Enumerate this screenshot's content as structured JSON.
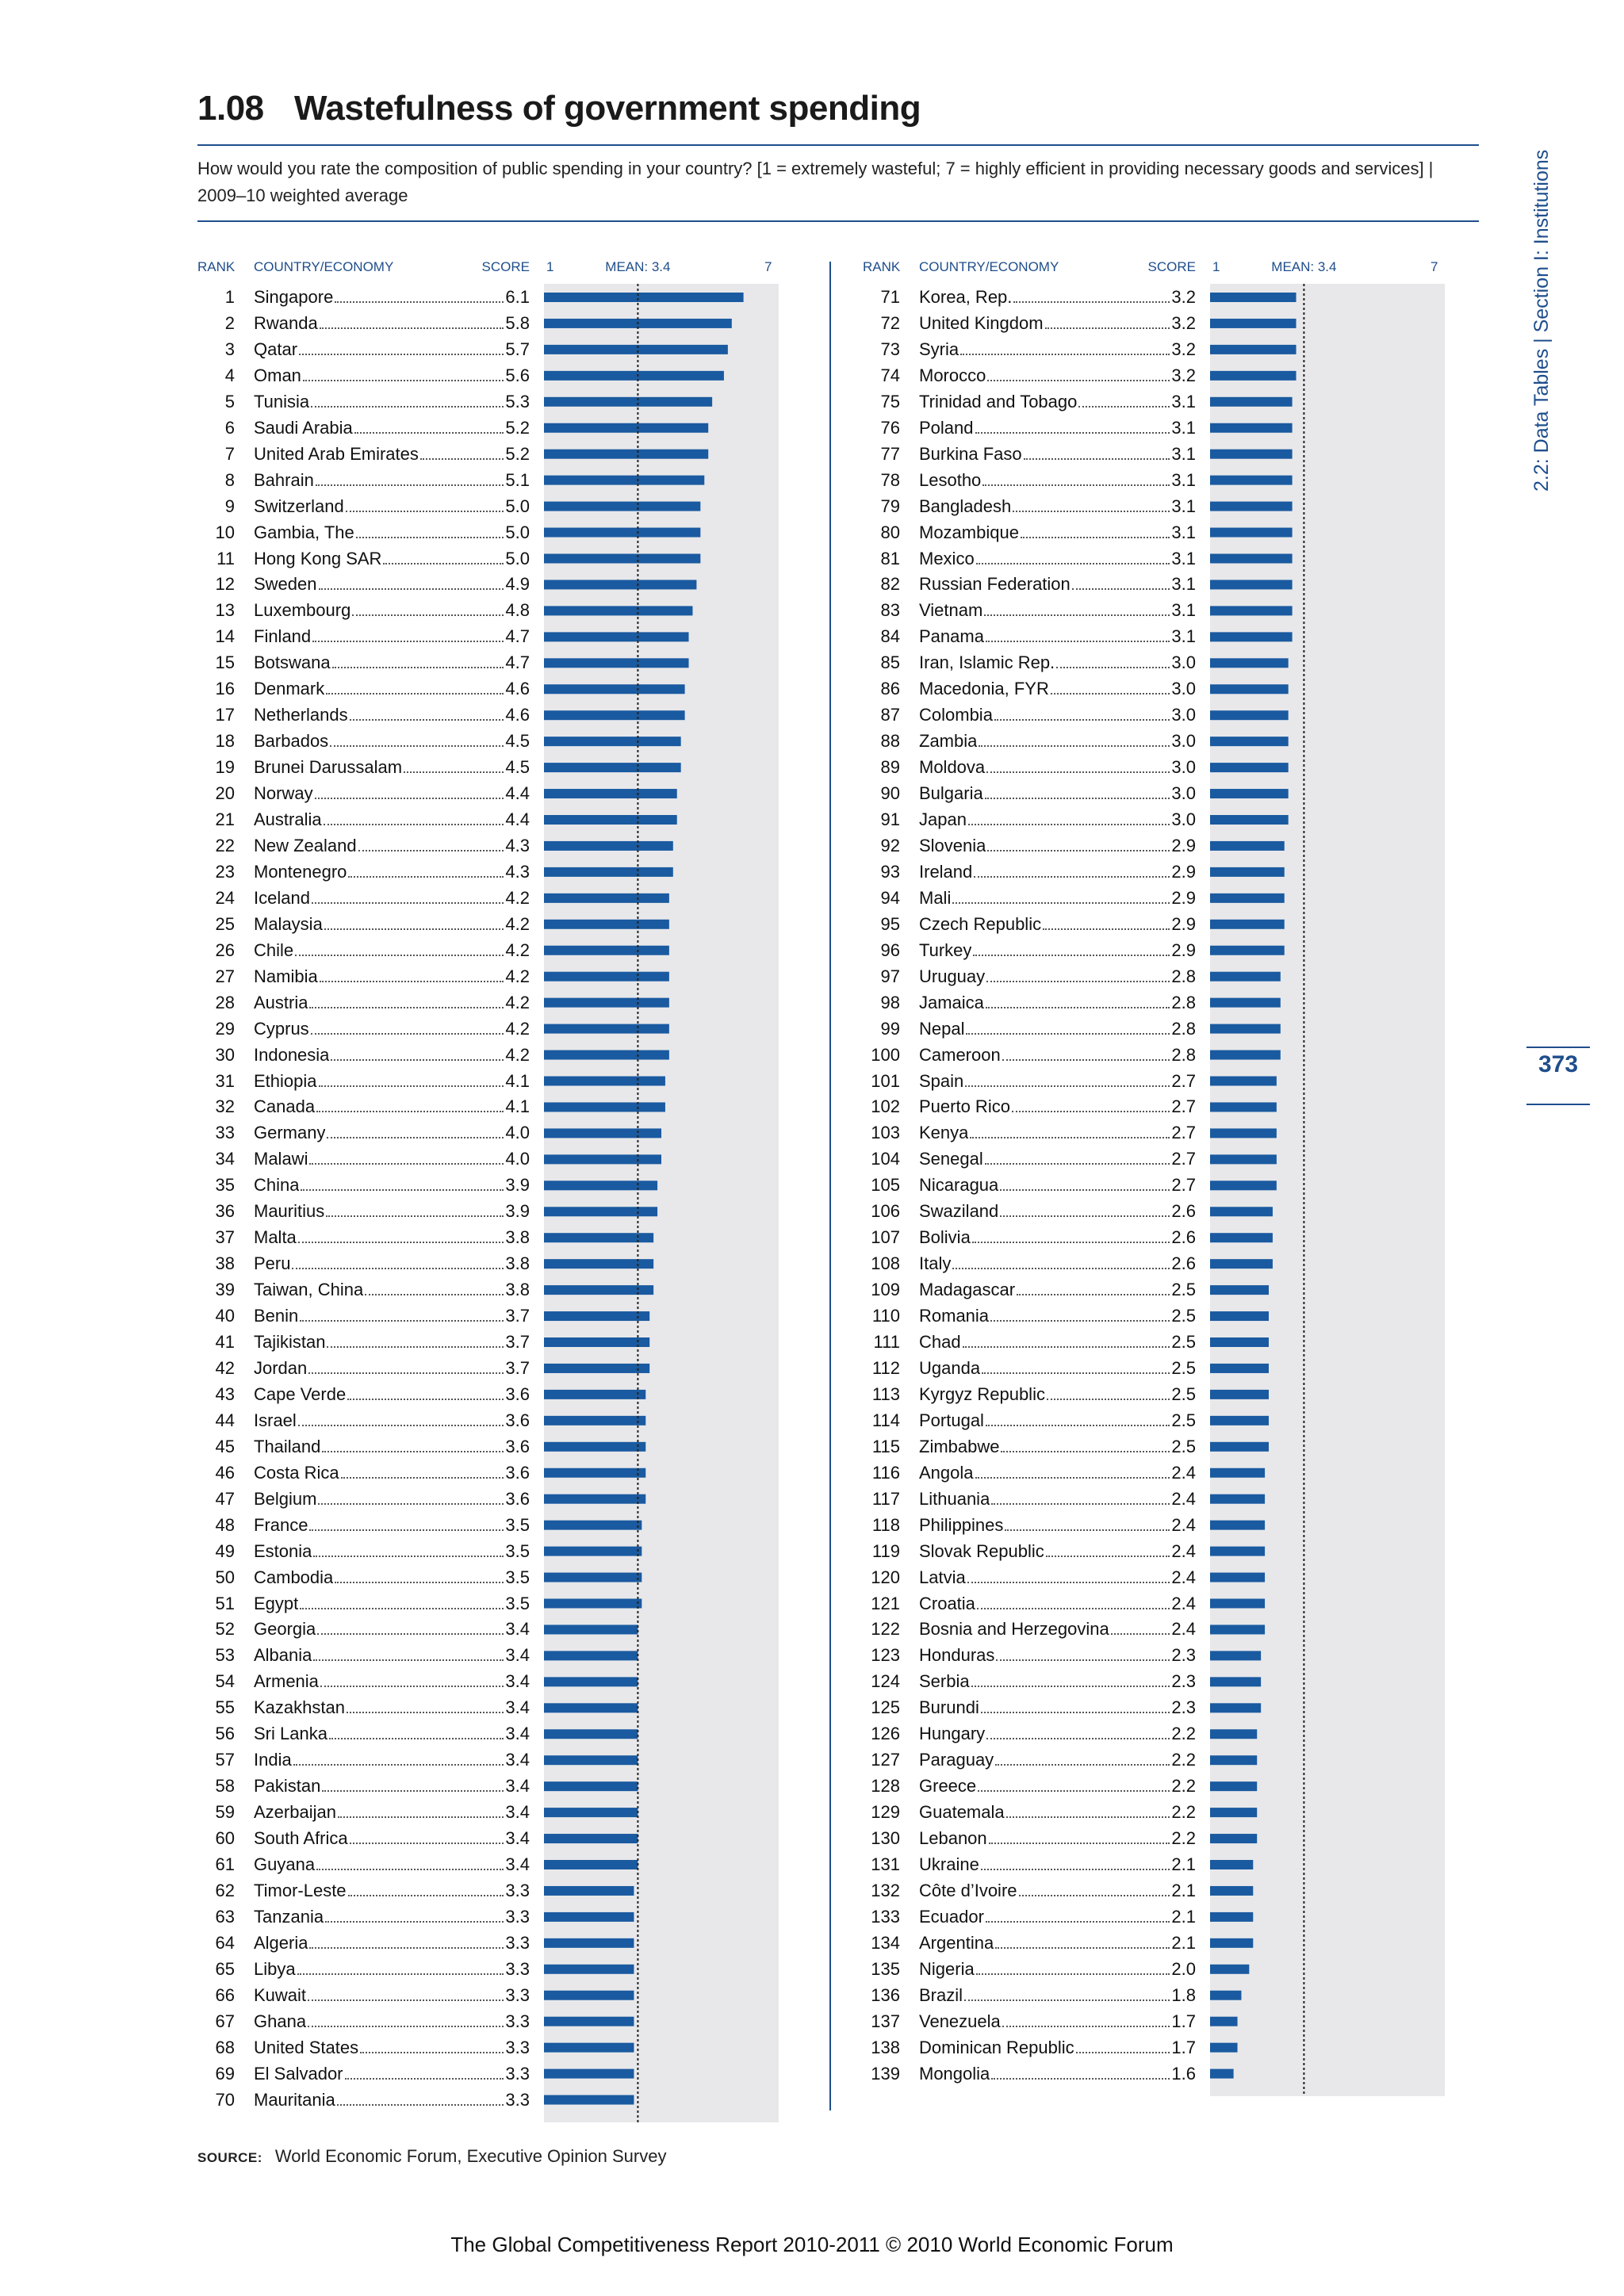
{
  "header": {
    "number": "1.08",
    "title": "Wastefulness of government spending",
    "subtitle": "How would you rate the composition of public spending in your country? [1 = extremely wasteful; 7 = highly efficient in providing necessary goods and services] | 2009–10 weighted average"
  },
  "columns": {
    "rank": "RANK",
    "country": "COUNTRY/ECONOMY",
    "score": "SCORE",
    "scale_min": "1",
    "mean": "MEAN: 3.4",
    "scale_max": "7"
  },
  "side": {
    "section": "2.2: Data Tables  |  Section I: Institutions",
    "page": "373"
  },
  "source": {
    "label": "SOURCE:",
    "text": "World Economic Forum, Executive Opinion Survey"
  },
  "footer": "The Global Competitiveness Report 2010-2011 © 2010 World Economic Forum",
  "colors": {
    "bar": "#1a5aa0",
    "track": "#e8e8ea",
    "accent": "#1f4e8c"
  },
  "chart_data": {
    "type": "bar",
    "orientation": "horizontal",
    "title": "Wastefulness of government spending",
    "xlim": [
      1,
      7
    ],
    "mean": 3.4,
    "rows": [
      [
        "1",
        "Singapore",
        "6.1"
      ],
      [
        "2",
        "Rwanda",
        "5.8"
      ],
      [
        "3",
        "Qatar",
        "5.7"
      ],
      [
        "4",
        "Oman",
        "5.6"
      ],
      [
        "5",
        "Tunisia",
        "5.3"
      ],
      [
        "6",
        "Saudi Arabia",
        "5.2"
      ],
      [
        "7",
        "United Arab Emirates",
        "5.2"
      ],
      [
        "8",
        "Bahrain",
        "5.1"
      ],
      [
        "9",
        "Switzerland",
        "5.0"
      ],
      [
        "10",
        "Gambia, The",
        "5.0"
      ],
      [
        "11",
        "Hong Kong SAR",
        "5.0"
      ],
      [
        "12",
        "Sweden",
        "4.9"
      ],
      [
        "13",
        "Luxembourg",
        "4.8"
      ],
      [
        "14",
        "Finland",
        "4.7"
      ],
      [
        "15",
        "Botswana",
        "4.7"
      ],
      [
        "16",
        "Denmark",
        "4.6"
      ],
      [
        "17",
        "Netherlands",
        "4.6"
      ],
      [
        "18",
        "Barbados",
        "4.5"
      ],
      [
        "19",
        "Brunei Darussalam",
        "4.5"
      ],
      [
        "20",
        "Norway",
        "4.4"
      ],
      [
        "21",
        "Australia",
        "4.4"
      ],
      [
        "22",
        "New Zealand",
        "4.3"
      ],
      [
        "23",
        "Montenegro",
        "4.3"
      ],
      [
        "24",
        "Iceland",
        "4.2"
      ],
      [
        "25",
        "Malaysia",
        "4.2"
      ],
      [
        "26",
        "Chile",
        "4.2"
      ],
      [
        "27",
        "Namibia",
        "4.2"
      ],
      [
        "28",
        "Austria",
        "4.2"
      ],
      [
        "29",
        "Cyprus",
        "4.2"
      ],
      [
        "30",
        "Indonesia",
        "4.2"
      ],
      [
        "31",
        "Ethiopia",
        "4.1"
      ],
      [
        "32",
        "Canada",
        "4.1"
      ],
      [
        "33",
        "Germany",
        "4.0"
      ],
      [
        "34",
        "Malawi",
        "4.0"
      ],
      [
        "35",
        "China",
        "3.9"
      ],
      [
        "36",
        "Mauritius",
        "3.9"
      ],
      [
        "37",
        "Malta",
        "3.8"
      ],
      [
        "38",
        "Peru",
        "3.8"
      ],
      [
        "39",
        "Taiwan, China",
        "3.8"
      ],
      [
        "40",
        "Benin",
        "3.7"
      ],
      [
        "41",
        "Tajikistan",
        "3.7"
      ],
      [
        "42",
        "Jordan",
        "3.7"
      ],
      [
        "43",
        "Cape Verde",
        "3.6"
      ],
      [
        "44",
        "Israel",
        "3.6"
      ],
      [
        "45",
        "Thailand",
        "3.6"
      ],
      [
        "46",
        "Costa Rica",
        "3.6"
      ],
      [
        "47",
        "Belgium",
        "3.6"
      ],
      [
        "48",
        "France",
        "3.5"
      ],
      [
        "49",
        "Estonia",
        "3.5"
      ],
      [
        "50",
        "Cambodia",
        "3.5"
      ],
      [
        "51",
        "Egypt",
        "3.5"
      ],
      [
        "52",
        "Georgia",
        "3.4"
      ],
      [
        "53",
        "Albania",
        "3.4"
      ],
      [
        "54",
        "Armenia",
        "3.4"
      ],
      [
        "55",
        "Kazakhstan",
        "3.4"
      ],
      [
        "56",
        "Sri Lanka",
        "3.4"
      ],
      [
        "57",
        "India",
        "3.4"
      ],
      [
        "58",
        "Pakistan",
        "3.4"
      ],
      [
        "59",
        "Azerbaijan",
        "3.4"
      ],
      [
        "60",
        "South Africa",
        "3.4"
      ],
      [
        "61",
        "Guyana",
        "3.4"
      ],
      [
        "62",
        "Timor-Leste",
        "3.3"
      ],
      [
        "63",
        "Tanzania",
        "3.3"
      ],
      [
        "64",
        "Algeria",
        "3.3"
      ],
      [
        "65",
        "Libya",
        "3.3"
      ],
      [
        "66",
        "Kuwait",
        "3.3"
      ],
      [
        "67",
        "Ghana",
        "3.3"
      ],
      [
        "68",
        "United States",
        "3.3"
      ],
      [
        "69",
        "El Salvador",
        "3.3"
      ],
      [
        "70",
        "Mauritania",
        "3.3"
      ],
      [
        "71",
        "Korea, Rep.",
        "3.2"
      ],
      [
        "72",
        "United Kingdom",
        "3.2"
      ],
      [
        "73",
        "Syria",
        "3.2"
      ],
      [
        "74",
        "Morocco",
        "3.2"
      ],
      [
        "75",
        "Trinidad and Tobago",
        "3.1"
      ],
      [
        "76",
        "Poland",
        "3.1"
      ],
      [
        "77",
        "Burkina Faso",
        "3.1"
      ],
      [
        "78",
        "Lesotho",
        "3.1"
      ],
      [
        "79",
        "Bangladesh",
        "3.1"
      ],
      [
        "80",
        "Mozambique",
        "3.1"
      ],
      [
        "81",
        "Mexico",
        "3.1"
      ],
      [
        "82",
        "Russian Federation",
        "3.1"
      ],
      [
        "83",
        "Vietnam",
        "3.1"
      ],
      [
        "84",
        "Panama",
        "3.1"
      ],
      [
        "85",
        "Iran, Islamic Rep.",
        "3.0"
      ],
      [
        "86",
        "Macedonia, FYR",
        "3.0"
      ],
      [
        "87",
        "Colombia",
        "3.0"
      ],
      [
        "88",
        "Zambia",
        "3.0"
      ],
      [
        "89",
        "Moldova",
        "3.0"
      ],
      [
        "90",
        "Bulgaria",
        "3.0"
      ],
      [
        "91",
        "Japan",
        "3.0"
      ],
      [
        "92",
        "Slovenia",
        "2.9"
      ],
      [
        "93",
        "Ireland",
        "2.9"
      ],
      [
        "94",
        "Mali",
        "2.9"
      ],
      [
        "95",
        "Czech Republic",
        "2.9"
      ],
      [
        "96",
        "Turkey",
        "2.9"
      ],
      [
        "97",
        "Uruguay",
        "2.8"
      ],
      [
        "98",
        "Jamaica",
        "2.8"
      ],
      [
        "99",
        "Nepal",
        "2.8"
      ],
      [
        "100",
        "Cameroon",
        "2.8"
      ],
      [
        "101",
        "Spain",
        "2.7"
      ],
      [
        "102",
        "Puerto Rico",
        "2.7"
      ],
      [
        "103",
        "Kenya",
        "2.7"
      ],
      [
        "104",
        "Senegal",
        "2.7"
      ],
      [
        "105",
        "Nicaragua",
        "2.7"
      ],
      [
        "106",
        "Swaziland",
        "2.6"
      ],
      [
        "107",
        "Bolivia",
        "2.6"
      ],
      [
        "108",
        "Italy",
        "2.6"
      ],
      [
        "109",
        "Madagascar",
        "2.5"
      ],
      [
        "110",
        "Romania",
        "2.5"
      ],
      [
        "111",
        "Chad",
        "2.5"
      ],
      [
        "112",
        "Uganda",
        "2.5"
      ],
      [
        "113",
        "Kyrgyz Republic",
        "2.5"
      ],
      [
        "114",
        "Portugal",
        "2.5"
      ],
      [
        "115",
        "Zimbabwe",
        "2.5"
      ],
      [
        "116",
        "Angola",
        "2.4"
      ],
      [
        "117",
        "Lithuania",
        "2.4"
      ],
      [
        "118",
        "Philippines",
        "2.4"
      ],
      [
        "119",
        "Slovak Republic",
        "2.4"
      ],
      [
        "120",
        "Latvia",
        "2.4"
      ],
      [
        "121",
        "Croatia",
        "2.4"
      ],
      [
        "122",
        "Bosnia and Herzegovina",
        "2.4"
      ],
      [
        "123",
        "Honduras",
        "2.3"
      ],
      [
        "124",
        "Serbia",
        "2.3"
      ],
      [
        "125",
        "Burundi",
        "2.3"
      ],
      [
        "126",
        "Hungary",
        "2.2"
      ],
      [
        "127",
        "Paraguay",
        "2.2"
      ],
      [
        "128",
        "Greece",
        "2.2"
      ],
      [
        "129",
        "Guatemala",
        "2.2"
      ],
      [
        "130",
        "Lebanon",
        "2.2"
      ],
      [
        "131",
        "Ukraine",
        "2.1"
      ],
      [
        "132",
        "Côte d’Ivoire",
        "2.1"
      ],
      [
        "133",
        "Ecuador",
        "2.1"
      ],
      [
        "134",
        "Argentina",
        "2.1"
      ],
      [
        "135",
        "Nigeria",
        "2.0"
      ],
      [
        "136",
        "Brazil",
        "1.8"
      ],
      [
        "137",
        "Venezuela",
        "1.7"
      ],
      [
        "138",
        "Dominican Republic",
        "1.7"
      ],
      [
        "139",
        "Mongolia",
        "1.6"
      ]
    ]
  }
}
